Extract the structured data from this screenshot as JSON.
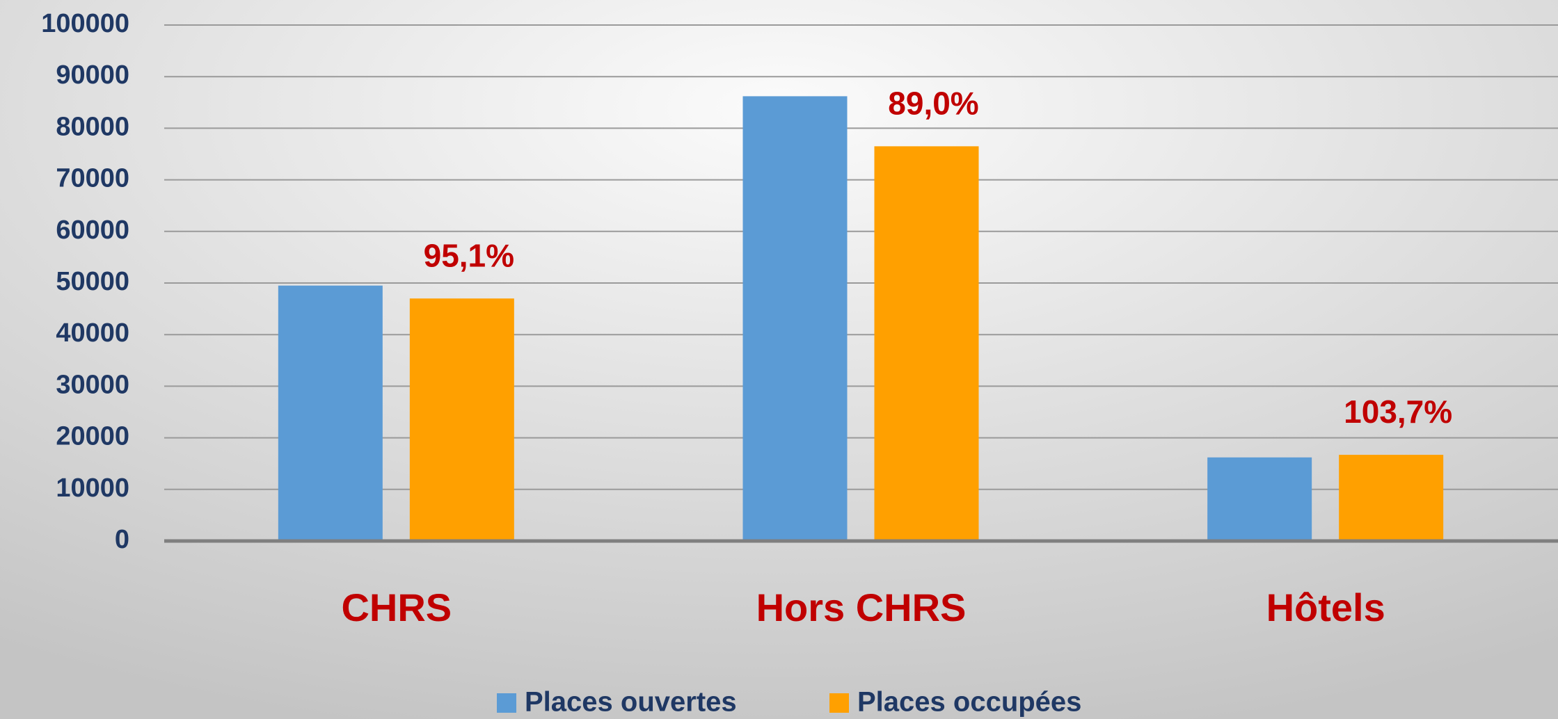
{
  "chart_data": {
    "type": "bar",
    "categories": [
      "CHRS",
      "Hors CHRS",
      "Hôtels"
    ],
    "series": [
      {
        "name": "Places ouvertes",
        "color": "#5b9bd5",
        "values": [
          49500,
          86200,
          16200
        ]
      },
      {
        "name": "Places occupées",
        "color": "#ffa000",
        "values": [
          47000,
          76500,
          16700
        ]
      }
    ],
    "annotations": [
      "95,1%",
      "89,0%",
      "103,7%"
    ],
    "ylim": [
      0,
      100000
    ],
    "yticks": [
      0,
      10000,
      20000,
      30000,
      40000,
      50000,
      60000,
      70000,
      80000,
      90000,
      100000
    ],
    "grid": true,
    "legend": "bottom"
  }
}
